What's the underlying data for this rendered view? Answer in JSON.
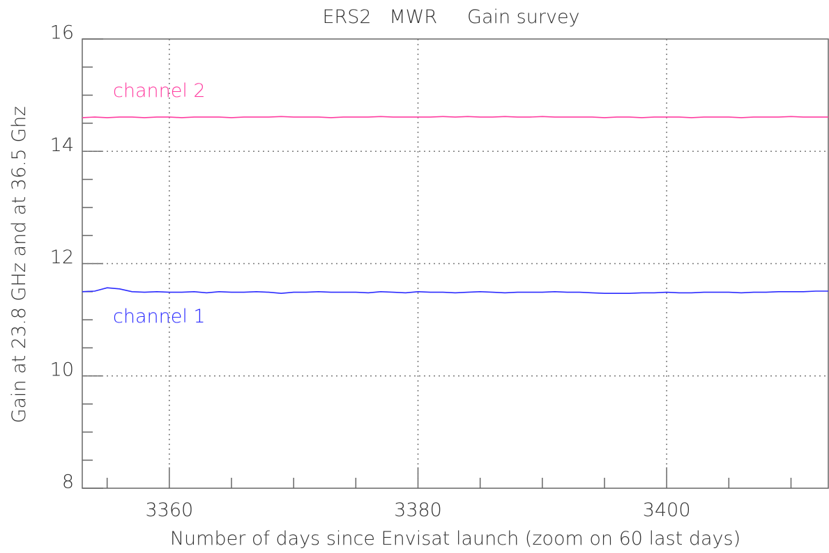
{
  "chart_data": {
    "type": "line",
    "title": "ERS2   MWR     Gain survey",
    "xlabel": "Number of days since Envisat launch (zoom on 60 last days)",
    "ylabel": "Gain at 23.8 GHz and at 36.5 Ghz",
    "x": [
      3353,
      3354,
      3355,
      3356,
      3357,
      3358,
      3359,
      3360,
      3361,
      3362,
      3363,
      3364,
      3365,
      3366,
      3367,
      3368,
      3369,
      3370,
      3371,
      3372,
      3373,
      3374,
      3375,
      3376,
      3377,
      3378,
      3379,
      3380,
      3381,
      3382,
      3383,
      3384,
      3385,
      3386,
      3387,
      3388,
      3389,
      3390,
      3391,
      3392,
      3393,
      3394,
      3395,
      3396,
      3397,
      3398,
      3399,
      3400,
      3401,
      3402,
      3403,
      3404,
      3405,
      3406,
      3407,
      3408,
      3409,
      3410,
      3411,
      3412,
      3413
    ],
    "series": [
      {
        "name": "channel 1",
        "color": "#2b2bff",
        "values": [
          11.5,
          11.51,
          11.57,
          11.55,
          11.5,
          11.49,
          11.5,
          11.49,
          11.49,
          11.5,
          11.48,
          11.5,
          11.49,
          11.49,
          11.5,
          11.49,
          11.47,
          11.49,
          11.49,
          11.5,
          11.49,
          11.49,
          11.49,
          11.48,
          11.5,
          11.49,
          11.48,
          11.5,
          11.49,
          11.49,
          11.48,
          11.49,
          11.5,
          11.49,
          11.48,
          11.49,
          11.49,
          11.49,
          11.5,
          11.49,
          11.49,
          11.48,
          11.47,
          11.47,
          11.47,
          11.48,
          11.48,
          11.49,
          11.48,
          11.48,
          11.49,
          11.49,
          11.49,
          11.48,
          11.49,
          11.49,
          11.5,
          11.5,
          11.5,
          11.51,
          11.51
        ]
      },
      {
        "name": "channel 2",
        "color": "#ff3da0",
        "values": [
          14.6,
          14.61,
          14.6,
          14.61,
          14.61,
          14.6,
          14.61,
          14.61,
          14.6,
          14.61,
          14.61,
          14.61,
          14.6,
          14.61,
          14.61,
          14.61,
          14.62,
          14.61,
          14.61,
          14.61,
          14.6,
          14.61,
          14.61,
          14.61,
          14.62,
          14.61,
          14.61,
          14.61,
          14.61,
          14.62,
          14.61,
          14.62,
          14.61,
          14.61,
          14.62,
          14.61,
          14.61,
          14.62,
          14.61,
          14.61,
          14.61,
          14.61,
          14.6,
          14.61,
          14.61,
          14.6,
          14.61,
          14.61,
          14.61,
          14.6,
          14.61,
          14.61,
          14.61,
          14.6,
          14.61,
          14.61,
          14.61,
          14.62,
          14.61,
          14.61,
          14.61
        ]
      }
    ],
    "xlim": [
      3353,
      3413
    ],
    "ylim": [
      8,
      16
    ],
    "xticks": [
      3360,
      3380,
      3400
    ],
    "yticks": [
      8,
      10,
      12,
      14,
      16
    ],
    "xminorticks": [
      3355,
      3365,
      3370,
      3375,
      3385,
      3390,
      3395,
      3405,
      3410
    ],
    "yminorticks": [
      8.5,
      9,
      9.5,
      10.5,
      11,
      11.5,
      12.5,
      13,
      13.5,
      14.5,
      15,
      15.5
    ],
    "grid": true
  }
}
